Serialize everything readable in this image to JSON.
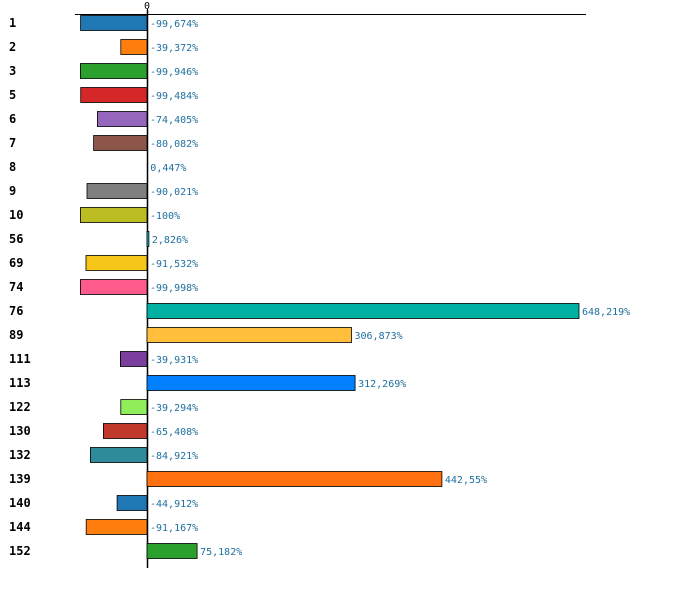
{
  "chart_data": {
    "type": "bar",
    "orientation": "horizontal",
    "categories": [
      "1",
      "2",
      "3",
      "5",
      "6",
      "7",
      "8",
      "9",
      "10",
      "56",
      "69",
      "74",
      "76",
      "89",
      "111",
      "113",
      "122",
      "130",
      "132",
      "139",
      "140",
      "144",
      "152"
    ],
    "values": [
      -99.674,
      -39.372,
      -99.946,
      -99.484,
      -74.405,
      -80.082,
      0.447,
      -90.021,
      -100,
      2.826,
      -91.532,
      -99.998,
      648.219,
      306.873,
      -39.931,
      312.269,
      -39.294,
      -65.408,
      -84.921,
      442.55,
      -44.912,
      -91.167,
      75.182
    ],
    "value_labels": [
      "-99,674%",
      "-39,372%",
      "-99,946%",
      "-99,484%",
      "-74,405%",
      "-80,082%",
      "0,447%",
      "-90,021%",
      "-100%",
      "2,826%",
      "-91,532%",
      "-99,998%",
      "648,219%",
      "306,873%",
      "-39,931%",
      "312,269%",
      "-39,294%",
      "-65,408%",
      "-84,921%",
      "442,55%",
      "-44,912%",
      "-91,167%",
      "75,182%"
    ],
    "colors": [
      "#1f77b4",
      "#ff7f0e",
      "#2ca02c",
      "#d62728",
      "#9467bd",
      "#8c564b",
      "#e377c2",
      "#7f7f7f",
      "#bcbd22",
      "#17becf",
      "#f5c518",
      "#ff5c8d",
      "#00b0a0",
      "#ffbe3c",
      "#7b3f9e",
      "#0080ff",
      "#90ee5a",
      "#c0392b",
      "#2e8b9a",
      "#ff7010",
      "#1f77b4",
      "#ff7f0e",
      "#2ca02c"
    ],
    "zero_tick_label": "0",
    "xlim": [
      -100,
      648.219
    ],
    "title": "",
    "xlabel": "",
    "ylabel": "",
    "grid": false,
    "legend": "none"
  }
}
